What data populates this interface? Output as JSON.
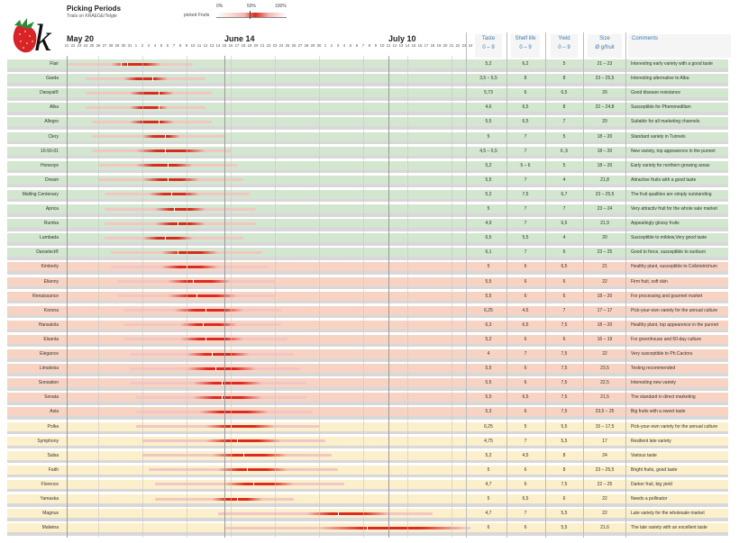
{
  "header": {
    "title": "Picking Periods",
    "subtitle": "Trials on KRAEGE/Telgte",
    "logo_letter": "k",
    "legend": {
      "p0": "0%",
      "p50": "50%",
      "p100": "100%",
      "label": "picked Fruits"
    }
  },
  "timeline": {
    "months": [
      {
        "label": "May 20",
        "day_index": 0
      },
      {
        "label": "June 14",
        "day_index": 25
      },
      {
        "label": "July 10",
        "day_index": 51
      }
    ],
    "days": [
      "21",
      "22",
      "23",
      "24",
      "25",
      "26",
      "27",
      "28",
      "29",
      "30",
      "31",
      "1",
      "2",
      "3",
      "4",
      "5",
      "6",
      "7",
      "8",
      "9",
      "10",
      "11",
      "12",
      "13",
      "14",
      "15",
      "16",
      "17",
      "18",
      "19",
      "20",
      "21",
      "22",
      "23",
      "24",
      "25",
      "26",
      "27",
      "28",
      "29",
      "30",
      "1",
      "2",
      "3",
      "4",
      "5",
      "6",
      "7",
      "8",
      "9",
      "10",
      "11",
      "12",
      "13",
      "14",
      "15",
      "16",
      "17",
      "18",
      "19",
      "20",
      "21",
      "22",
      "23",
      "24"
    ]
  },
  "columns": [
    {
      "label": "Taste",
      "sub": "0 – 9"
    },
    {
      "label": "Shelf life",
      "sub": "0 – 9"
    },
    {
      "label": "Yield",
      "sub": "0 – 9"
    },
    {
      "label": "Size",
      "sub": "Ø g/fruit"
    },
    {
      "label": "Comments",
      "sub": ""
    }
  ],
  "colors": {
    "green": "#d3e6cf",
    "orange": "#f7d3c4",
    "yellow": "#fbefcc",
    "bar_dark": "#dd2a20",
    "bar_light": "#f2c7c3"
  },
  "chart_data": {
    "type": "bar",
    "title": "Picking Periods",
    "x_unit": "days from May 21",
    "rows": [
      {
        "name": "Flair",
        "group": "green",
        "pale": [
          0,
          20
        ],
        "core": [
          7,
          15
        ],
        "ticks": [
          8.5,
          9.5
        ],
        "taste": "5,2",
        "shelf": "6,2",
        "yield": "5",
        "size": "21 – 23",
        "comment": "Interesting early variety with a good taste"
      },
      {
        "name": "Garda",
        "group": "green",
        "pale": [
          3,
          22
        ],
        "core": [
          9,
          16
        ],
        "ticks": [
          13.5
        ],
        "taste": "3,5 – 5,5",
        "shelf": "8",
        "yield": "8",
        "size": "23 – 25,5",
        "comment": "Interesting alternative to Alba"
      },
      {
        "name": "Darayal®",
        "group": "green",
        "pale": [
          3,
          23
        ],
        "core": [
          10,
          17
        ],
        "ticks": [
          14.5
        ],
        "taste": "5,73",
        "shelf": "6",
        "yield": "6,5",
        "size": "20",
        "comment": "Good disease resistance"
      },
      {
        "name": "Alba",
        "group": "green",
        "pale": [
          3,
          22
        ],
        "core": [
          10,
          16
        ],
        "ticks": [
          14.5
        ],
        "taste": "4,6",
        "shelf": "6,5",
        "yield": "8",
        "size": "22 – 24,8",
        "comment": "Susceptible for Phemmedifam"
      },
      {
        "name": "Allegro",
        "group": "green",
        "pale": [
          4,
          23
        ],
        "core": [
          10,
          17
        ],
        "ticks": [
          14.5
        ],
        "taste": "5,5",
        "shelf": "6,5",
        "yield": "7",
        "size": "20",
        "comment": "Suitable for all marketing channels"
      },
      {
        "name": "Clery",
        "group": "green",
        "pale": [
          4,
          25
        ],
        "core": [
          12,
          18
        ],
        "ticks": [
          15.5
        ],
        "taste": "5",
        "shelf": "7",
        "yield": "5",
        "size": "18 – 20",
        "comment": "Standard variety in Tunnels"
      },
      {
        "name": "10-50-01",
        "group": "green",
        "pale": [
          4,
          26
        ],
        "core": [
          11,
          22
        ],
        "ticks": [
          15.5
        ],
        "taste": "4,5 – 5,5",
        "shelf": "7",
        "yield": "6 ,5",
        "size": "18 – 20",
        "comment": "New variety, top appearence in the punnet"
      },
      {
        "name": "Honeoye",
        "group": "green",
        "pale": [
          5,
          27
        ],
        "core": [
          11,
          20
        ],
        "ticks": [
          16
        ],
        "taste": "5,2",
        "shelf": "5 – 6",
        "yield": "5",
        "size": "18 – 20",
        "comment": "Early variety for northern growing areas"
      },
      {
        "name": "Dream",
        "group": "green",
        "pale": [
          5,
          28
        ],
        "core": [
          12,
          21
        ],
        "ticks": [
          16
        ],
        "taste": "5,5",
        "shelf": "7",
        "yield": "4",
        "size": "21,8",
        "comment": "Attractive fruits with a good taste"
      },
      {
        "name": "Malling Centenary",
        "group": "green",
        "pale": [
          6,
          29
        ],
        "core": [
          13,
          21
        ],
        "ticks": [
          16.5
        ],
        "taste": "5,2",
        "shelf": "7,5",
        "yield": "6,7",
        "size": "23 – 25,5",
        "comment": "The fruit qualities are simply outstanding"
      },
      {
        "name": "Aprica",
        "group": "green",
        "pale": [
          6,
          30
        ],
        "core": [
          14,
          22
        ],
        "ticks": [
          17
        ],
        "taste": "5",
        "shelf": "7",
        "yield": "7",
        "size": "23 – 24",
        "comment": "Very attractiv fruit for the whole sale market"
      },
      {
        "name": "Rumba",
        "group": "green",
        "pale": [
          6,
          30
        ],
        "core": [
          14,
          22
        ],
        "ticks": [
          17.5
        ],
        "taste": "4,9",
        "shelf": "7",
        "yield": "6,5",
        "size": "21,9",
        "comment": "Appealingly glossy fruits"
      },
      {
        "name": "Lambada",
        "group": "green",
        "pale": [
          6,
          28
        ],
        "core": [
          12,
          20
        ],
        "ticks": [
          15.5
        ],
        "taste": "6,5",
        "shelf": "5,5",
        "yield": "4",
        "size": "20",
        "comment": "Susceptible to mildew,Very good taste"
      },
      {
        "name": "Darselect®",
        "group": "green",
        "pale": [
          7,
          31
        ],
        "core": [
          15,
          24
        ],
        "ticks": [
          17.5
        ],
        "taste": "6,1",
        "shelf": "7",
        "yield": "6",
        "size": "23 – 25",
        "comment": "Good to force, susceptible to sunburn"
      },
      {
        "name": "Kimberly",
        "group": "orange",
        "pale": [
          7,
          32
        ],
        "core": [
          15,
          24
        ],
        "ticks": [
          19
        ],
        "taste": "5",
        "shelf": "6",
        "yield": "6,5",
        "size": "21",
        "comment": "Healthy plant, susceptible to Colletotrichum"
      },
      {
        "name": "Elianny",
        "group": "orange",
        "pale": [
          8,
          33
        ],
        "core": [
          16,
          26
        ],
        "ticks": [
          20
        ],
        "taste": "5,5",
        "shelf": "6",
        "yield": "6",
        "size": "22",
        "comment": "Firm fruit, soft skin"
      },
      {
        "name": "Renaissance",
        "group": "orange",
        "pale": [
          8,
          33
        ],
        "core": [
          16,
          27
        ],
        "ticks": [
          20.5
        ],
        "taste": "5,5",
        "shelf": "6",
        "yield": "6",
        "size": "18 – 20",
        "comment": "For processing and gourmet market"
      },
      {
        "name": "Korona",
        "group": "orange",
        "pale": [
          9,
          34
        ],
        "core": [
          17,
          28
        ],
        "ticks": [
          22
        ],
        "taste": "6,25",
        "shelf": "4,5",
        "yield": "7",
        "size": "17 – 17",
        "comment": "Pick-your-own variety for the annual culture"
      },
      {
        "name": "Hansalola",
        "group": "orange",
        "pale": [
          9,
          34
        ],
        "core": [
          18,
          27
        ],
        "ticks": [
          21.5
        ],
        "taste": "6,3",
        "shelf": "6,5",
        "yield": "7,5",
        "size": "18 – 20",
        "comment": "Healthy plant, top appearence in the punnet"
      },
      {
        "name": "Elsanta",
        "group": "orange",
        "pale": [
          9,
          35
        ],
        "core": [
          18,
          28
        ],
        "ticks": [
          22
        ],
        "taste": "5,2",
        "shelf": "6",
        "yield": "6",
        "size": "16 – 19",
        "comment": "For greenhouse and 60-day culture"
      },
      {
        "name": "Elegance",
        "group": "orange",
        "pale": [
          10,
          36
        ],
        "core": [
          19,
          29
        ],
        "ticks": [
          23
        ],
        "taste": "4",
        "shelf": "7",
        "yield": "7,5",
        "size": "22",
        "comment": "Very susceptible to Ph.Cactoru"
      },
      {
        "name": "Limalexia",
        "group": "orange",
        "pale": [
          10,
          37
        ],
        "core": [
          19,
          30
        ],
        "ticks": [
          23.5
        ],
        "taste": "5,5",
        "shelf": "6",
        "yield": "7,5",
        "size": "23,5",
        "comment": "Testing recommended"
      },
      {
        "name": "Sonsation",
        "group": "orange",
        "pale": [
          10,
          38
        ],
        "core": [
          20,
          31
        ],
        "ticks": [
          24.5
        ],
        "taste": "5,5",
        "shelf": "6",
        "yield": "7,5",
        "size": "22,5",
        "comment": "Interesting new variety"
      },
      {
        "name": "Sonata",
        "group": "orange",
        "pale": [
          11,
          38
        ],
        "core": [
          20,
          31
        ],
        "ticks": [
          24.5
        ],
        "taste": "5,5",
        "shelf": "6,5",
        "yield": "7,5",
        "size": "21,5",
        "comment": "The standard in direct marketing"
      },
      {
        "name": "Asia",
        "group": "orange",
        "pale": [
          11,
          39
        ],
        "core": [
          21,
          32
        ],
        "ticks": [
          25
        ],
        "taste": "5,3",
        "shelf": "6",
        "yield": "7,5",
        "size": "23,5 – 25",
        "comment": "Big fruits with a sweet taste"
      },
      {
        "name": "Polka",
        "group": "yellow",
        "pale": [
          11,
          40
        ],
        "core": [
          22,
          33
        ],
        "ticks": [
          26
        ],
        "taste": "6,25",
        "shelf": "5",
        "yield": "5,5",
        "size": "15 – 17,5",
        "comment": "Pick-your-own variety for the annual culture"
      },
      {
        "name": "Symphony",
        "group": "yellow",
        "pale": [
          12,
          41
        ],
        "core": [
          22,
          34
        ],
        "ticks": [
          27
        ],
        "taste": "4,75",
        "shelf": "7",
        "yield": "5,5",
        "size": "17",
        "comment": "Resilient late variety"
      },
      {
        "name": "Salsa",
        "group": "yellow",
        "pale": [
          12,
          42
        ],
        "core": [
          23,
          35
        ],
        "ticks": [
          28
        ],
        "taste": "5,2",
        "shelf": "4,5",
        "yield": "8",
        "size": "24",
        "comment": "Various taste"
      },
      {
        "name": "Faith",
        "group": "yellow",
        "pale": [
          13,
          43
        ],
        "core": [
          24,
          35
        ],
        "ticks": [
          28.5
        ],
        "taste": "5",
        "shelf": "6",
        "yield": "8",
        "size": "23 – 25,5",
        "comment": "Bright fruits, good taste"
      },
      {
        "name": "Florence",
        "group": "yellow",
        "pale": [
          14,
          44
        ],
        "core": [
          25,
          36
        ],
        "ticks": [
          29.5
        ],
        "taste": "4,7",
        "shelf": "6",
        "yield": "7,5",
        "size": "22 – 25",
        "comment": "Darker fruit, big yield"
      },
      {
        "name": "Yamaska",
        "group": "yellow",
        "pale": [
          14,
          36
        ],
        "core": [
          23,
          31
        ],
        "ticks": [
          27
        ],
        "taste": "5",
        "shelf": "6,5",
        "yield": "6",
        "size": "22",
        "comment": "Needs a pollinator"
      },
      {
        "name": "Magnus",
        "group": "yellow",
        "pale": [
          24,
          58
        ],
        "core": [
          38,
          51
        ],
        "ticks": [
          43
        ],
        "taste": "4,7",
        "shelf": "7",
        "yield": "5,5",
        "size": "22",
        "comment": "Late variety for the wholesale market"
      },
      {
        "name": "Malwina",
        "group": "yellow",
        "pale": [
          25,
          64
        ],
        "core": [
          40,
          63
        ],
        "ticks": [
          47.5
        ],
        "taste": "6",
        "shelf": "6",
        "yield": "5,5",
        "size": "21,6",
        "comment": "The late variety with an excellent taste"
      }
    ]
  }
}
